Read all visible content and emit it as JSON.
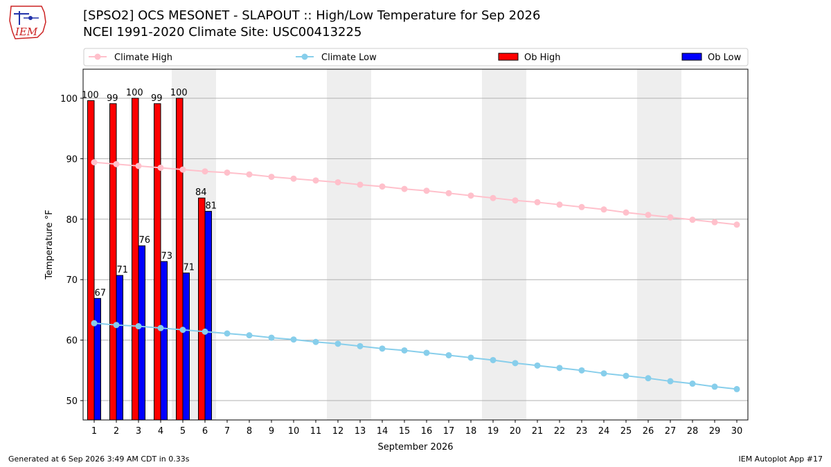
{
  "header": {
    "title_line1": "[SPSO2] OCS MESONET - SLAPOUT :: High/Low Temperature for Sep 2026",
    "title_line2": "NCEI 1991-2020 Climate Site: USC00413225",
    "logo_text": "IEM"
  },
  "footer": {
    "left": "Generated at 6 Sep 2026 3:49 AM CDT in 0.33s",
    "right": "IEM Autoplot App #17"
  },
  "colors": {
    "ob_high": "#ff0000",
    "ob_low": "#0000ff",
    "climate_high": "#ffc0cb",
    "climate_low": "#87ceeb",
    "weekend_shade": "#eeeeee",
    "grid": "#b0b0b0"
  },
  "chart_data": {
    "type": "bar",
    "xlabel": "September 2026",
    "ylabel": "Temperature °F",
    "ylim": [
      46.8,
      104.8
    ],
    "yticks": [
      50,
      60,
      70,
      80,
      90,
      100
    ],
    "grid": "horizontal",
    "legend_position": "top",
    "days": [
      1,
      2,
      3,
      4,
      5,
      6,
      7,
      8,
      9,
      10,
      11,
      12,
      13,
      14,
      15,
      16,
      17,
      18,
      19,
      20,
      21,
      22,
      23,
      24,
      25,
      26,
      27,
      28,
      29,
      30
    ],
    "weekend_days": [
      5,
      6,
      12,
      13,
      19,
      20,
      26,
      27
    ],
    "legend": [
      {
        "label": "Climate High",
        "kind": "line",
        "color": "#ffc0cb"
      },
      {
        "label": "Climate Low",
        "kind": "line",
        "color": "#87ceeb"
      },
      {
        "label": "Ob High",
        "kind": "bar",
        "color": "#ff0000"
      },
      {
        "label": "Ob Low",
        "kind": "bar",
        "color": "#0000ff"
      }
    ],
    "series": [
      {
        "name": "Ob High",
        "kind": "bar",
        "days": [
          1,
          2,
          3,
          4,
          5,
          6
        ],
        "values": [
          99.6,
          99.1,
          100.0,
          99.1,
          100.0,
          83.5
        ],
        "labels": [
          "100",
          "99",
          "100",
          "99",
          "100",
          "84"
        ]
      },
      {
        "name": "Ob Low",
        "kind": "bar",
        "days": [
          1,
          2,
          3,
          4,
          5,
          6
        ],
        "values": [
          66.9,
          70.7,
          75.6,
          73.0,
          71.1,
          81.3
        ],
        "labels": [
          "67",
          "71",
          "76",
          "73",
          "71",
          "81"
        ]
      },
      {
        "name": "Climate High",
        "kind": "line",
        "values": [
          89.4,
          89.1,
          88.8,
          88.5,
          88.2,
          87.9,
          87.7,
          87.4,
          87.0,
          86.7,
          86.4,
          86.1,
          85.7,
          85.4,
          85.0,
          84.7,
          84.3,
          83.9,
          83.5,
          83.1,
          82.8,
          82.4,
          82.0,
          81.6,
          81.1,
          80.7,
          80.3,
          79.9,
          79.5,
          79.1
        ]
      },
      {
        "name": "Climate Low",
        "kind": "line",
        "values": [
          62.8,
          62.5,
          62.3,
          62.0,
          61.7,
          61.4,
          61.1,
          60.8,
          60.4,
          60.1,
          59.7,
          59.4,
          59.0,
          58.6,
          58.3,
          57.9,
          57.5,
          57.1,
          56.7,
          56.2,
          55.8,
          55.4,
          55.0,
          54.5,
          54.1,
          53.7,
          53.2,
          52.8,
          52.3,
          51.9
        ]
      }
    ]
  }
}
